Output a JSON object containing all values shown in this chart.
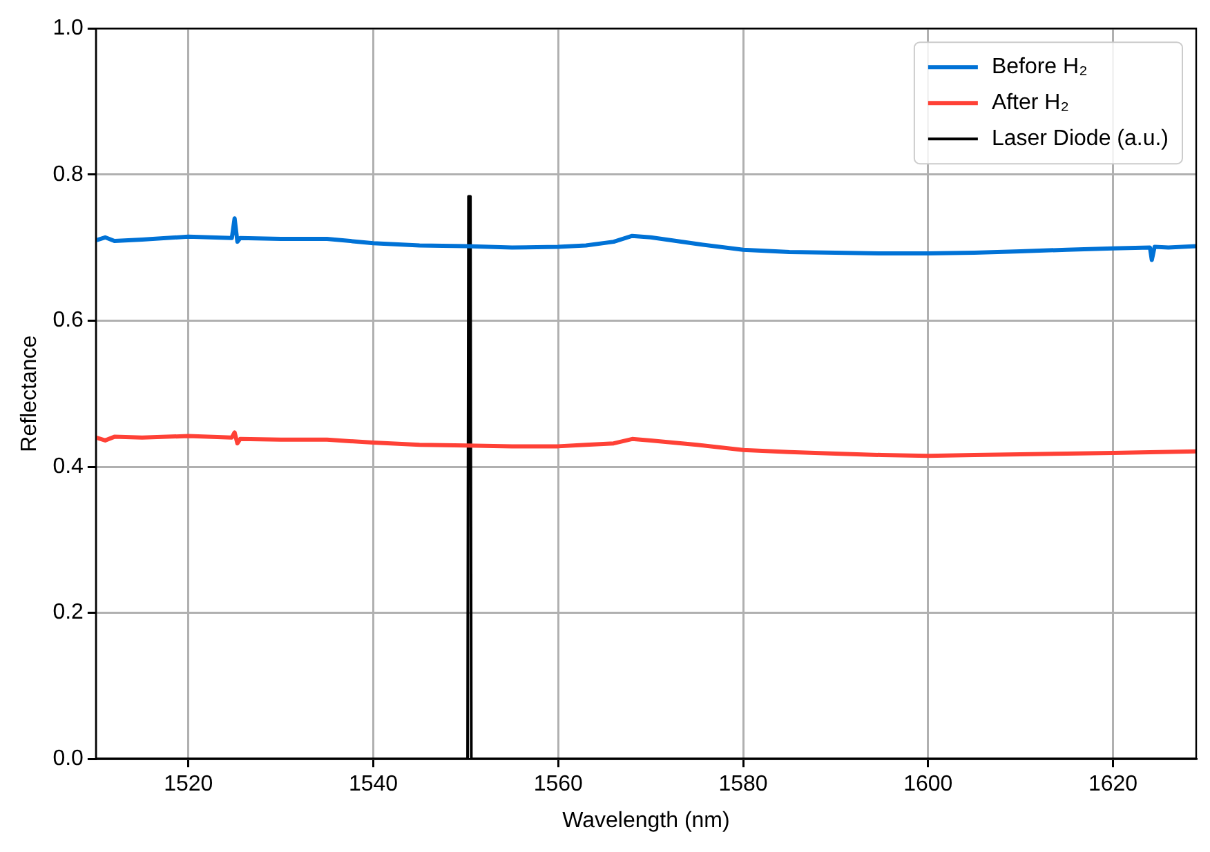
{
  "chart_data": {
    "type": "line",
    "xlabel": "Wavelength (nm)",
    "ylabel": "Reflectance",
    "xlim": [
      1510,
      1629
    ],
    "xticks": [
      1520,
      1540,
      1560,
      1580,
      1600,
      1620
    ],
    "ylim": [
      0,
      1
    ],
    "yticks": [
      {
        "value": 0,
        "label": "0.0"
      },
      0.2,
      0.4,
      0.6,
      0.8,
      {
        "value": 1,
        "label": "1.0"
      }
    ],
    "grid": true,
    "legend": "top right",
    "marker": "none",
    "line_style": "solid",
    "series": [
      {
        "name": "Before H₂",
        "color": "#0072d6",
        "x": [
          1510,
          1511,
          1512,
          1515,
          1520,
          1524.7,
          1525,
          1525.3,
          1525.6,
          1530,
          1535,
          1540,
          1545,
          1550,
          1555,
          1560,
          1563,
          1566,
          1568,
          1570,
          1575,
          1580,
          1585,
          1590,
          1595,
          1600,
          1605,
          1610,
          1615,
          1620,
          1624,
          1624.2,
          1624.5,
          1626,
          1629
        ],
        "values": [
          0.71,
          0.714,
          0.709,
          0.711,
          0.715,
          0.713,
          0.74,
          0.708,
          0.713,
          0.712,
          0.712,
          0.706,
          0.703,
          0.702,
          0.7,
          0.701,
          0.703,
          0.708,
          0.716,
          0.714,
          0.705,
          0.697,
          0.694,
          0.693,
          0.692,
          0.692,
          0.693,
          0.695,
          0.697,
          0.699,
          0.7,
          0.683,
          0.701,
          0.7,
          0.702
        ]
      },
      {
        "name": "After H₂",
        "color": "#ff4136",
        "x": [
          1510,
          1511,
          1512,
          1515,
          1520,
          1524.7,
          1525,
          1525.3,
          1525.6,
          1530,
          1535,
          1540,
          1545,
          1550,
          1555,
          1560,
          1563,
          1566,
          1568,
          1570,
          1575,
          1580,
          1585,
          1590,
          1595,
          1600,
          1605,
          1610,
          1615,
          1620,
          1625,
          1629
        ],
        "values": [
          0.44,
          0.436,
          0.441,
          0.44,
          0.442,
          0.44,
          0.447,
          0.432,
          0.438,
          0.437,
          0.437,
          0.433,
          0.43,
          0.429,
          0.428,
          0.428,
          0.43,
          0.432,
          0.438,
          0.436,
          0.43,
          0.423,
          0.42,
          0.418,
          0.416,
          0.415,
          0.416,
          0.417,
          0.418,
          0.419,
          0.42,
          0.421
        ]
      },
      {
        "name": "Laser Diode (a.u.)",
        "color": "#000000",
        "x": [
          1510,
          1550.2,
          1550.3,
          1550.5,
          1550.6,
          1629
        ],
        "values": [
          0,
          0,
          0.77,
          0.77,
          0,
          0
        ]
      }
    ]
  }
}
